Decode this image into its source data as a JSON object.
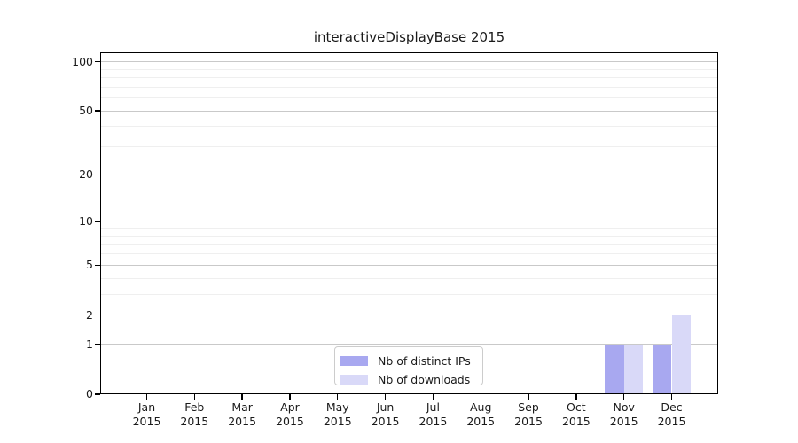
{
  "chart_data": {
    "type": "bar",
    "title": "interactiveDisplayBase 2015",
    "categories": [
      {
        "month": "Jan",
        "year": "2015"
      },
      {
        "month": "Feb",
        "year": "2015"
      },
      {
        "month": "Mar",
        "year": "2015"
      },
      {
        "month": "Apr",
        "year": "2015"
      },
      {
        "month": "May",
        "year": "2015"
      },
      {
        "month": "Jun",
        "year": "2015"
      },
      {
        "month": "Jul",
        "year": "2015"
      },
      {
        "month": "Aug",
        "year": "2015"
      },
      {
        "month": "Sep",
        "year": "2015"
      },
      {
        "month": "Oct",
        "year": "2015"
      },
      {
        "month": "Nov",
        "year": "2015"
      },
      {
        "month": "Dec",
        "year": "2015"
      }
    ],
    "series": [
      {
        "name": "Nb of distinct IPs",
        "color": "#a8a8f0",
        "values": [
          0,
          0,
          0,
          0,
          0,
          0,
          0,
          0,
          0,
          0,
          1,
          1
        ]
      },
      {
        "name": "Nb of downloads",
        "color": "#d9d9f8",
        "values": [
          0,
          0,
          0,
          0,
          0,
          0,
          0,
          0,
          0,
          0,
          1,
          2
        ]
      }
    ],
    "y_axis": {
      "scale": "log10(value+1)",
      "ticks": [
        0,
        1,
        2,
        5,
        10,
        20,
        50,
        100
      ],
      "minor_gridlines": [
        3,
        4,
        6,
        7,
        8,
        9,
        30,
        40,
        60,
        70,
        80,
        90
      ],
      "ymax": 114
    },
    "legend": {
      "position": "lower center"
    },
    "colors": {
      "axis": "#000000",
      "grid_major": "#c9c9c9",
      "grid_minor": "#efefef",
      "text": "#1a1a1a"
    },
    "grid": "on"
  }
}
